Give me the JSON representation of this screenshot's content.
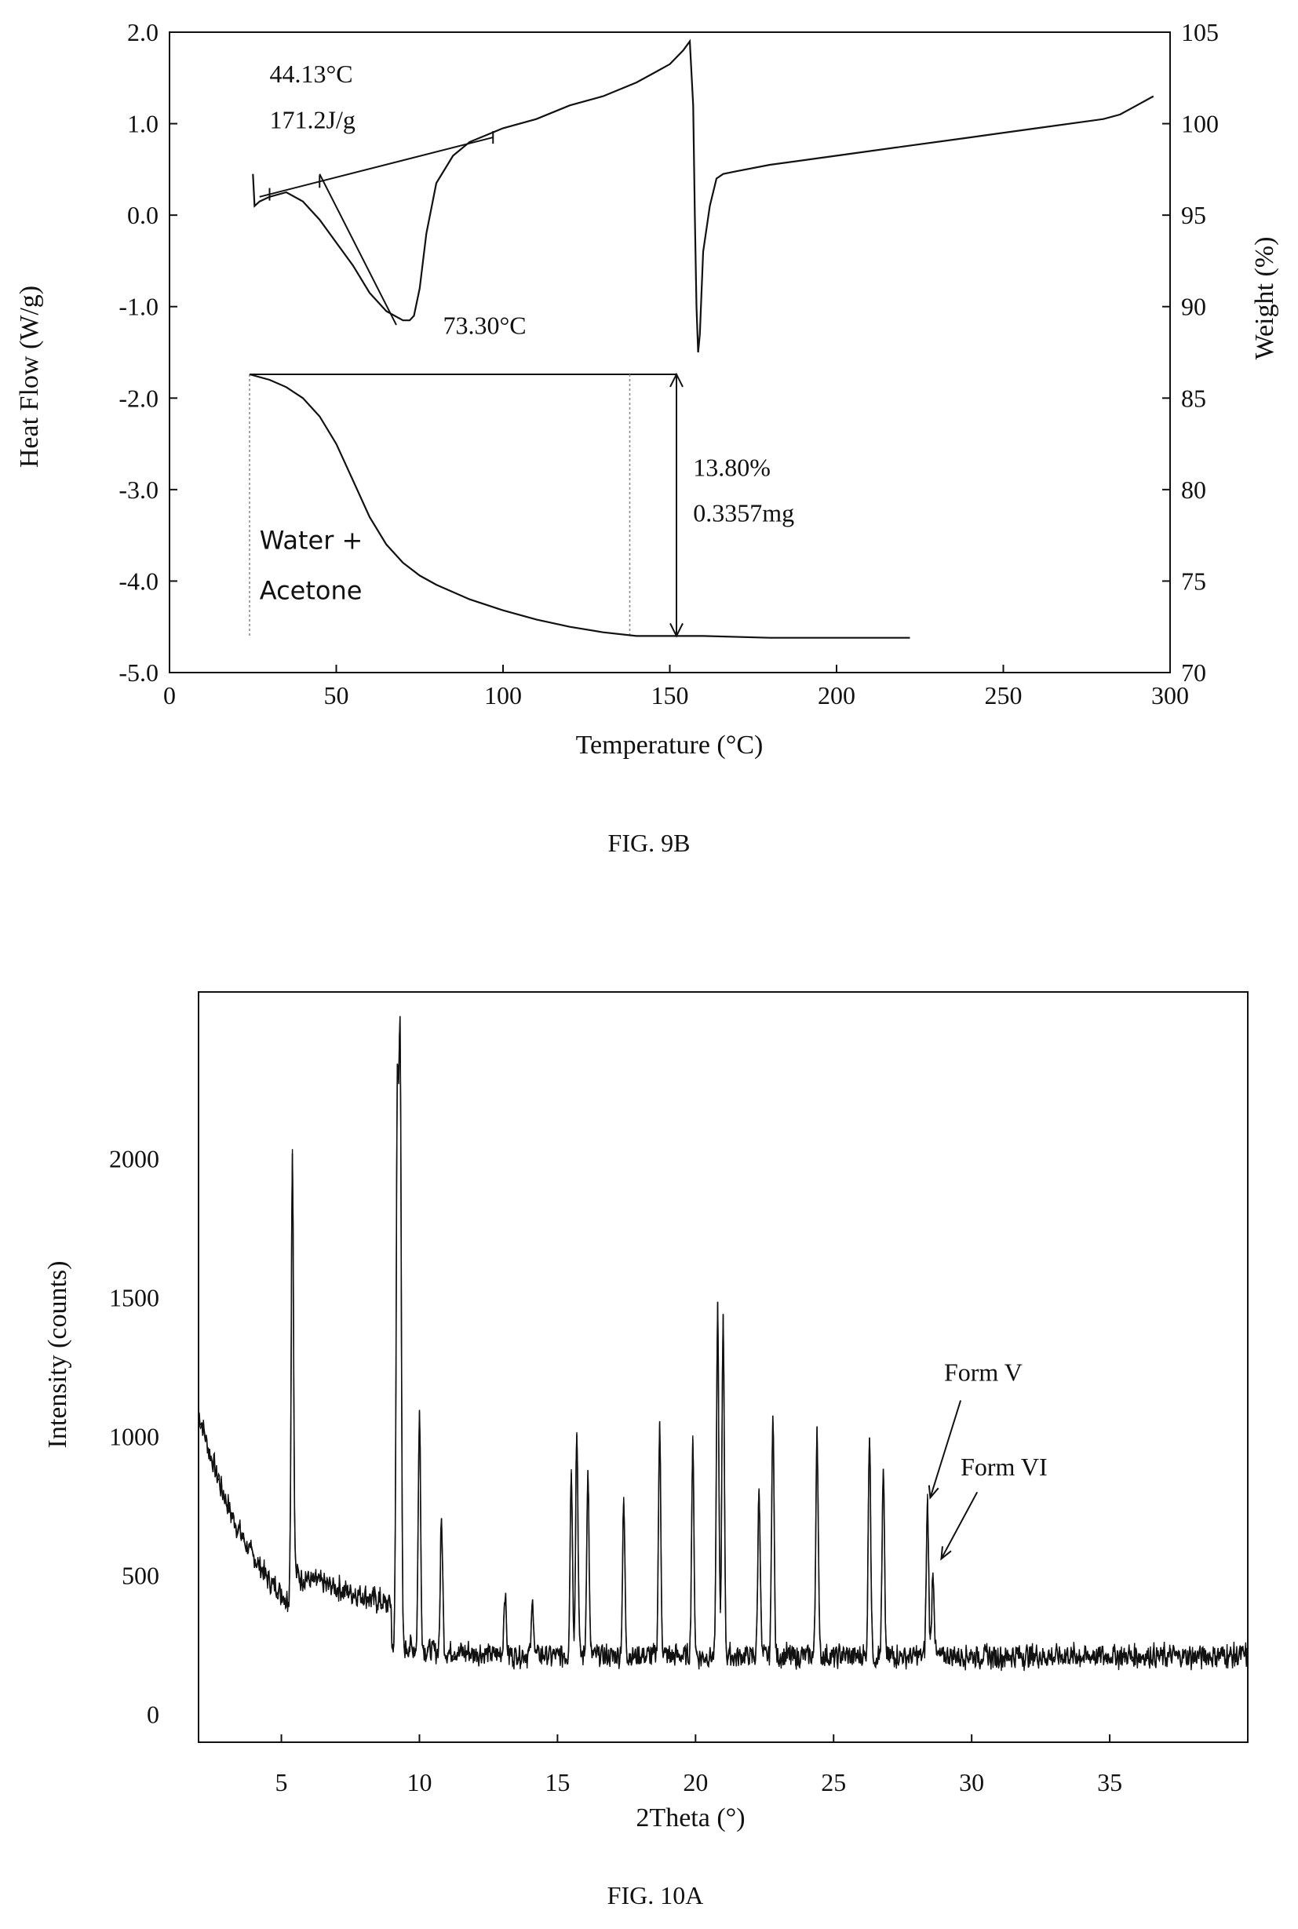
{
  "figures": [
    {
      "caption": "FIG. 9B",
      "chart_data": {
        "type": "line",
        "xlabel": "Temperature (°C)",
        "ylabel": "Heat Flow (W/g)",
        "y2label": "Weight (%)",
        "xlim": [
          0,
          300
        ],
        "ylim": [
          -5.0,
          2.0
        ],
        "y2lim": [
          70,
          105
        ],
        "x_ticks": [
          "0",
          "50",
          "100",
          "150",
          "200",
          "250",
          "300"
        ],
        "y_ticks": [
          "2.0",
          "1.0",
          "0.0",
          "-1.0",
          "-2.0",
          "-3.0",
          "-4.0",
          "-5.0"
        ],
        "y2_ticks": [
          "105",
          "100",
          "95",
          "90",
          "85",
          "80",
          "75",
          "70"
        ],
        "annotations": [
          {
            "text": "44.13°C",
            "x": 30,
            "y": 1.45
          },
          {
            "text": "171.2J/g",
            "x": 30,
            "y": 0.95
          },
          {
            "text": "73.30°C",
            "x": 82,
            "y": -1.3
          },
          {
            "text": "13.80%",
            "x": 157,
            "y": -2.85
          },
          {
            "text": "0.3357mg",
            "x": 157,
            "y": -3.35
          },
          {
            "text": "Water +",
            "x": 27,
            "y": -3.65
          },
          {
            "text": "Acetone",
            "x": 27,
            "y": -4.2
          }
        ],
        "series": [
          {
            "axis": "left",
            "x": [
              25,
              25.5,
              27,
              30,
              35,
              40,
              45,
              50,
              55,
              60,
              65,
              70,
              72,
              73.3,
              75,
              77,
              80,
              85,
              90,
              100,
              110,
              120,
              130,
              140,
              145,
              150,
              154,
              156,
              157,
              157.5,
              158,
              158.5,
              159,
              160,
              162,
              164,
              166,
              170,
              180,
              200,
              220,
              240,
              260,
              280,
              285,
              290,
              295
            ],
            "y": [
              0.45,
              0.1,
              0.15,
              0.2,
              0.25,
              0.15,
              -0.05,
              -0.3,
              -0.55,
              -0.85,
              -1.05,
              -1.15,
              -1.15,
              -1.1,
              -0.8,
              -0.2,
              0.35,
              0.65,
              0.8,
              0.95,
              1.05,
              1.2,
              1.3,
              1.45,
              1.55,
              1.65,
              1.8,
              1.9,
              1.2,
              0.0,
              -1.0,
              -1.5,
              -1.3,
              -0.4,
              0.1,
              0.4,
              0.45,
              0.48,
              0.55,
              0.65,
              0.75,
              0.85,
              0.95,
              1.05,
              1.1,
              1.2,
              1.3
            ]
          },
          {
            "axis": "right",
            "x": [
              24,
              30,
              35,
              40,
              45,
              50,
              55,
              60,
              65,
              70,
              75,
              80,
              90,
              100,
              110,
              120,
              130,
              140,
              150,
              160,
              180,
              200,
              222
            ],
            "y": [
              86.3,
              86,
              85.6,
              85,
              84,
              82.5,
              80.5,
              78.5,
              77,
              76,
              75.3,
              74.8,
              74,
              73.4,
              72.9,
              72.5,
              72.2,
              72.0,
              72.0,
              72.0,
              71.9,
              71.9,
              71.9
            ]
          }
        ]
      }
    },
    {
      "caption": "FIG. 10A",
      "chart_data": {
        "type": "line",
        "xlabel": "2Theta (°)",
        "ylabel": "Intensity (counts)",
        "xlim": [
          2,
          40
        ],
        "ylim": [
          -100,
          2600
        ],
        "x_ticks": [
          "5",
          "10",
          "15",
          "20",
          "25",
          "30",
          "35"
        ],
        "y_ticks": [
          "0",
          "500",
          "1000",
          "1500",
          "2000"
        ],
        "annotations": [
          {
            "text": "Form V",
            "x": 29,
            "y": 1200
          },
          {
            "text": "Form VI",
            "x": 29.6,
            "y": 860
          }
        ],
        "peaks": [
          {
            "x": 5.4,
            "y": 2020
          },
          {
            "x": 9.3,
            "y": 2400
          },
          {
            "x": 9.2,
            "y": 2200
          },
          {
            "x": 10.0,
            "y": 1090
          },
          {
            "x": 10.8,
            "y": 700
          },
          {
            "x": 13.1,
            "y": 440
          },
          {
            "x": 14.1,
            "y": 400
          },
          {
            "x": 15.5,
            "y": 880
          },
          {
            "x": 15.7,
            "y": 1020
          },
          {
            "x": 16.1,
            "y": 870
          },
          {
            "x": 17.4,
            "y": 760
          },
          {
            "x": 18.7,
            "y": 1030
          },
          {
            "x": 19.9,
            "y": 960
          },
          {
            "x": 20.8,
            "y": 1470
          },
          {
            "x": 21.0,
            "y": 1440
          },
          {
            "x": 22.3,
            "y": 820
          },
          {
            "x": 22.8,
            "y": 1110
          },
          {
            "x": 24.4,
            "y": 1040
          },
          {
            "x": 26.3,
            "y": 1030
          },
          {
            "x": 26.8,
            "y": 870
          },
          {
            "x": 28.4,
            "y": 760
          },
          {
            "x": 28.6,
            "y": 520
          }
        ]
      }
    }
  ]
}
